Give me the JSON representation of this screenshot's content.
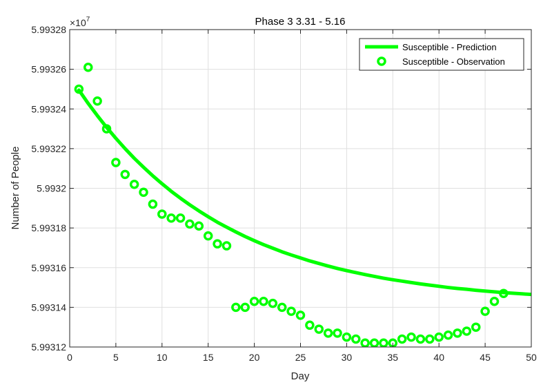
{
  "chart_data": {
    "type": "line",
    "title": "Phase 3 3.31 - 5.16",
    "xlabel": "Day",
    "ylabel": "Number of People",
    "y_multiplier_label": "×10",
    "y_multiplier_exponent": "7",
    "xlim": [
      0,
      50
    ],
    "ylim": [
      5.99312,
      5.99328
    ],
    "x_ticks": [
      0,
      5,
      10,
      15,
      20,
      25,
      30,
      35,
      40,
      45,
      50
    ],
    "x_tick_labels": [
      "0",
      "5",
      "10",
      "15",
      "20",
      "25",
      "30",
      "35",
      "40",
      "45",
      "50"
    ],
    "y_ticks": [
      5.99312,
      5.99314,
      5.99316,
      5.99318,
      5.9932,
      5.99322,
      5.99324,
      5.99326,
      5.99328
    ],
    "y_tick_labels": [
      "5.99312",
      "5.99314",
      "5.99316",
      "5.99318",
      "5.9932",
      "5.99322",
      "5.99324",
      "5.99326",
      "5.99328"
    ],
    "grid": true,
    "legend_position": "top-right",
    "series": [
      {
        "name": "Susceptible - Prediction",
        "style": "line",
        "color": "#00ff00",
        "x": [
          1,
          2,
          3,
          4,
          5,
          6,
          7,
          8,
          9,
          10,
          11,
          12,
          13,
          14,
          15,
          16,
          17,
          18,
          19,
          20,
          21,
          22,
          23,
          24,
          25,
          26,
          27,
          28,
          29,
          30,
          31,
          32,
          33,
          34,
          35,
          36,
          37,
          38,
          39,
          40,
          41,
          42,
          43,
          44,
          45,
          46,
          47,
          48,
          49,
          50
        ],
        "values": [
          5.9932495,
          5.9932428,
          5.9932366,
          5.9932307,
          5.9932252,
          5.99322,
          5.9932151,
          5.9932106,
          5.9932063,
          5.9932023,
          5.9931985,
          5.993195,
          5.9931917,
          5.9931886,
          5.9931857,
          5.9931829,
          5.9931804,
          5.993178,
          5.9931757,
          5.9931736,
          5.9931716,
          5.9931698,
          5.993168,
          5.9931664,
          5.9931649,
          5.9931634,
          5.9931621,
          5.9931608,
          5.9931596,
          5.9931585,
          5.9931575,
          5.9931565,
          5.9931556,
          5.9931547,
          5.9931539,
          5.9931532,
          5.9931525,
          5.9931518,
          5.9931512,
          5.9931506,
          5.99315,
          5.9931495,
          5.9931491,
          5.9931486,
          5.9931482,
          5.9931478,
          5.9931474,
          5.9931471,
          5.9931468,
          5.9931465
        ]
      },
      {
        "name": "Susceptible - Observation",
        "style": "markers",
        "marker": "circle",
        "color": "#00ff00",
        "x": [
          1,
          2,
          3,
          4,
          5,
          6,
          7,
          8,
          9,
          10,
          11,
          12,
          13,
          14,
          15,
          16,
          17,
          18,
          19,
          20,
          21,
          22,
          23,
          24,
          25,
          26,
          27,
          28,
          29,
          30,
          31,
          32,
          33,
          34,
          35,
          36,
          37,
          38,
          39,
          40,
          41,
          42,
          43,
          44,
          45,
          46,
          47
        ],
        "values": [
          5.99325,
          5.993261,
          5.993244,
          5.99323,
          5.993213,
          5.993207,
          5.993202,
          5.993198,
          5.993192,
          5.993187,
          5.993185,
          5.993185,
          5.993182,
          5.993181,
          5.993176,
          5.993172,
          5.993171,
          5.99314,
          5.99314,
          5.993143,
          5.993143,
          5.993142,
          5.99314,
          5.993138,
          5.993136,
          5.993131,
          5.993129,
          5.993127,
          5.993127,
          5.993125,
          5.993124,
          5.993122,
          5.993122,
          5.993122,
          5.993122,
          5.993124,
          5.993125,
          5.993124,
          5.993124,
          5.993125,
          5.993126,
          5.993127,
          5.993128,
          5.99313,
          5.993138,
          5.993143,
          5.993147
        ]
      }
    ]
  }
}
